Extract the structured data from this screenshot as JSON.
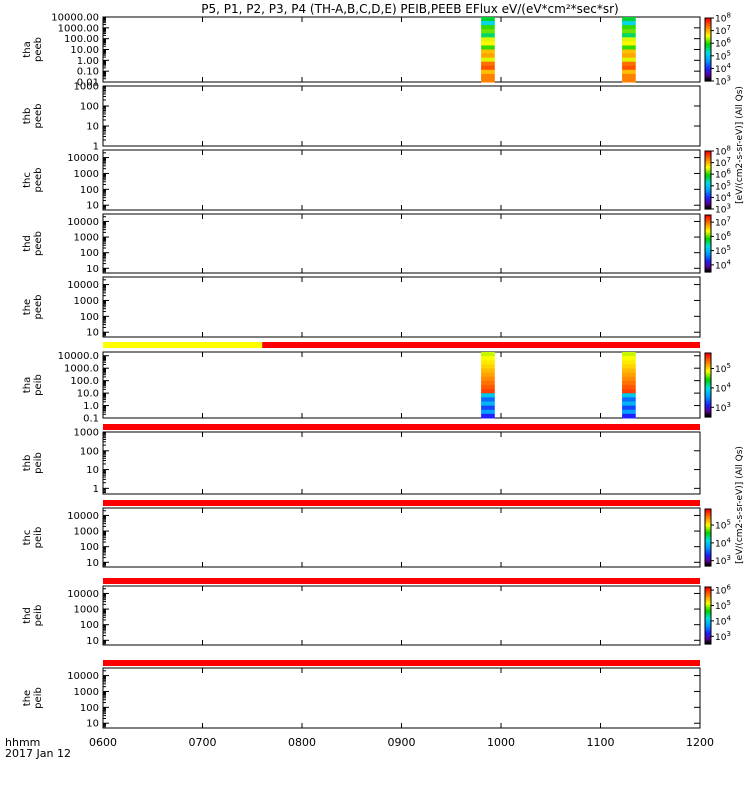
{
  "chart_data": {
    "type": "heatmap",
    "title": "P5, P1, P2, P3, P4 (TH-A,B,C,D,E) PEIB,PEEB EFlux eV/(eV*cm²*sec*sr)",
    "x_label": "hhmm",
    "date_label": "2017 Jan 12",
    "x_range": [
      "0600",
      "1200"
    ],
    "x_ticks": [
      "0600",
      "0700",
      "0800",
      "0900",
      "1000",
      "1100",
      "1200"
    ],
    "y_scale": "log",
    "panels": [
      {
        "name": "tha_peeb",
        "probe": "tha",
        "instr": "peeb",
        "y_range": [
          0.01,
          10000
        ],
        "y_ticks": [
          "10000.00",
          "1000.00",
          "100.00",
          "10.00",
          "1.00",
          "0.10",
          "0.01"
        ],
        "data_intervals": [
          [
            "0945",
            "1000"
          ],
          [
            "1110",
            "1125"
          ]
        ]
      },
      {
        "name": "thb_peeb",
        "probe": "thb",
        "instr": "peeb",
        "y_range": [
          1,
          1000
        ],
        "y_ticks": [
          "1000",
          "100",
          "10",
          "1"
        ],
        "data_intervals": []
      },
      {
        "name": "thc_peeb",
        "probe": "thc",
        "instr": "peeb",
        "y_range": [
          5,
          30000
        ],
        "y_ticks": [
          "10000",
          "1000",
          "100",
          "10"
        ],
        "data_intervals": []
      },
      {
        "name": "thd_peeb",
        "probe": "thd",
        "instr": "peeb",
        "y_range": [
          5,
          30000
        ],
        "y_ticks": [
          "10000",
          "1000",
          "100",
          "10"
        ],
        "data_intervals": []
      },
      {
        "name": "the_peeb",
        "probe": "the",
        "instr": "peeb",
        "y_range": [
          5,
          30000
        ],
        "y_ticks": [
          "10000",
          "1000",
          "100",
          "10"
        ],
        "data_intervals": []
      },
      {
        "name": "tha_peib",
        "probe": "tha",
        "instr": "peib",
        "y_range": [
          0.1,
          20000
        ],
        "y_ticks": [
          "10000.0",
          "1000.0",
          "100.0",
          "10.0",
          "1.0",
          "0.1"
        ],
        "data_intervals": [
          [
            "0945",
            "1000"
          ],
          [
            "1110",
            "1125"
          ]
        ]
      },
      {
        "name": "thb_peib",
        "probe": "thb",
        "instr": "peib",
        "y_range": [
          0.5,
          1000
        ],
        "y_ticks": [
          "1000",
          "100",
          "10",
          "1"
        ],
        "data_intervals": []
      },
      {
        "name": "thc_peib",
        "probe": "thc",
        "instr": "peib",
        "y_range": [
          5,
          30000
        ],
        "y_ticks": [
          "10000",
          "1000",
          "100",
          "10"
        ],
        "data_intervals": []
      },
      {
        "name": "thd_peib",
        "probe": "thd",
        "instr": "peib",
        "y_range": [
          5,
          30000
        ],
        "y_ticks": [
          "10000",
          "1000",
          "100",
          "10"
        ],
        "data_intervals": []
      },
      {
        "name": "the_peib",
        "probe": "the",
        "instr": "peib",
        "y_range": [
          5,
          30000
        ],
        "y_ticks": [
          "10000",
          "1000",
          "100",
          "10"
        ],
        "data_intervals": []
      }
    ],
    "status_bars": [
      {
        "between_panels": [
          "the_peeb",
          "tha_peib"
        ],
        "segments": [
          {
            "from": "0600",
            "to": "0736",
            "color": "#ffff00"
          },
          {
            "from": "0736",
            "to": "1200",
            "color": "#ff0000"
          }
        ]
      },
      {
        "between_panels": [
          "tha_peib",
          "thb_peib"
        ],
        "segments": [
          {
            "from": "0600",
            "to": "1200",
            "color": "#ff0000"
          }
        ]
      },
      {
        "between_panels": [
          "thb_peib",
          "thc_peib"
        ],
        "segments": [
          {
            "from": "0600",
            "to": "1200",
            "color": "#ff0000"
          }
        ]
      },
      {
        "between_panels": [
          "thc_peib",
          "thd_peib"
        ],
        "segments": [
          {
            "from": "0600",
            "to": "1200",
            "color": "#ff0000"
          }
        ]
      },
      {
        "between_panels": [
          "thd_peib",
          "the_peib"
        ],
        "segments": [
          {
            "from": "0600",
            "to": "1200",
            "color": "#ff0000"
          }
        ]
      }
    ],
    "colorbars": [
      {
        "panel": "tha_peeb",
        "ticks": [
          "10^8",
          "10^7",
          "10^6",
          "10^5",
          "10^4",
          "10^3"
        ],
        "exp": [
          8,
          7,
          6,
          5,
          4,
          3
        ],
        "range": [
          3,
          8
        ]
      },
      {
        "panel": "thc_peeb",
        "ticks": [
          "10^8",
          "10^7",
          "10^6",
          "10^5",
          "10^4",
          "10^3"
        ],
        "exp": [
          8,
          7,
          6,
          5,
          4,
          3
        ],
        "range": [
          3,
          8
        ]
      },
      {
        "panel": "thd_peeb",
        "ticks": [
          "10^7",
          "10^6",
          "10^5",
          "10^4"
        ],
        "exp": [
          7,
          6,
          5,
          4
        ],
        "range": [
          3.5,
          7.5
        ]
      },
      {
        "panel": "tha_peib",
        "ticks": [
          "10^5",
          "10^4",
          "10^3"
        ],
        "exp": [
          5,
          4,
          3
        ],
        "range": [
          2.5,
          5.8
        ]
      },
      {
        "panel": "thc_peib",
        "ticks": [
          "10^5",
          "10^4",
          "10^3"
        ],
        "exp": [
          5,
          4,
          3
        ],
        "range": [
          2.7,
          5.9
        ]
      },
      {
        "panel": "thd_peib",
        "ticks": [
          "10^6",
          "10^5",
          "10^4",
          "10^3"
        ],
        "exp": [
          6,
          5,
          4,
          3
        ],
        "range": [
          2.5,
          6.2
        ]
      }
    ],
    "colorbar_labels": [
      "[eV/(cm2-s-sr-eV)] (All Qs)",
      "[eV/(cm2-s-sr-eV)] (All Qs)"
    ]
  }
}
